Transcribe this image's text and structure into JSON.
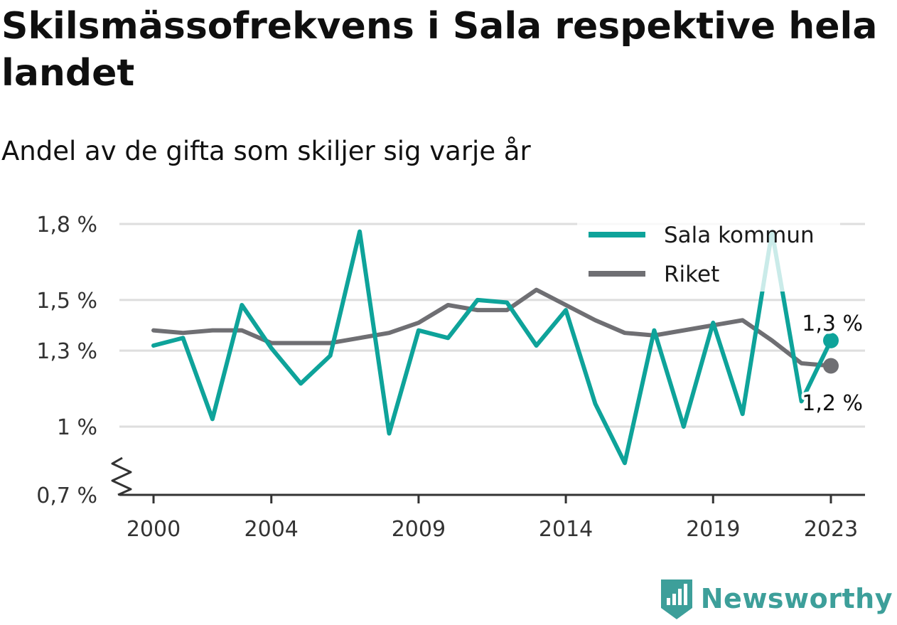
{
  "title": "Skilsmässofrekvens i Sala respektive hela landet",
  "subtitle": "Andel av de gifta som skiljer sig varje år",
  "brand": {
    "name": "Newsworthy",
    "icon": "bar-chart-logo-icon",
    "color": "#3d9f9a"
  },
  "chart_data": {
    "type": "line",
    "x": [
      2000,
      2001,
      2002,
      2003,
      2004,
      2005,
      2006,
      2007,
      2008,
      2009,
      2010,
      2011,
      2012,
      2013,
      2014,
      2015,
      2016,
      2017,
      2018,
      2019,
      2020,
      2021,
      2022,
      2023
    ],
    "x_ticks": [
      2000,
      2004,
      2009,
      2014,
      2019,
      2023
    ],
    "x_tick_labels": [
      "2000",
      "2004",
      "2009",
      "2014",
      "2019",
      "2023"
    ],
    "y_ticks": [
      0.7,
      1.0,
      1.3,
      1.5,
      1.8
    ],
    "y_tick_labels": [
      "0,7 %",
      "1 %",
      "1,3 %",
      "1,5 %",
      "1,8 %"
    ],
    "y_axis_break": true,
    "grid": true,
    "legend_position": "top-right",
    "series": [
      {
        "name": "Sala kommun",
        "color": "#0ea39a",
        "values": [
          1.32,
          1.35,
          1.03,
          1.48,
          1.31,
          1.17,
          1.28,
          1.77,
          0.97,
          1.38,
          1.35,
          1.5,
          1.49,
          1.32,
          1.46,
          1.09,
          0.84,
          1.38,
          1.0,
          1.41,
          1.05,
          1.77,
          1.1,
          1.34
        ],
        "end_label": "1,3 %"
      },
      {
        "name": "Riket",
        "color": "#6f6f73",
        "values": [
          1.38,
          1.37,
          1.38,
          1.38,
          1.33,
          1.33,
          1.33,
          1.35,
          1.37,
          1.41,
          1.48,
          1.46,
          1.46,
          1.54,
          1.48,
          1.42,
          1.37,
          1.36,
          1.38,
          1.4,
          1.42,
          1.34,
          1.25,
          1.24
        ],
        "end_label": "1,2 %"
      }
    ]
  }
}
